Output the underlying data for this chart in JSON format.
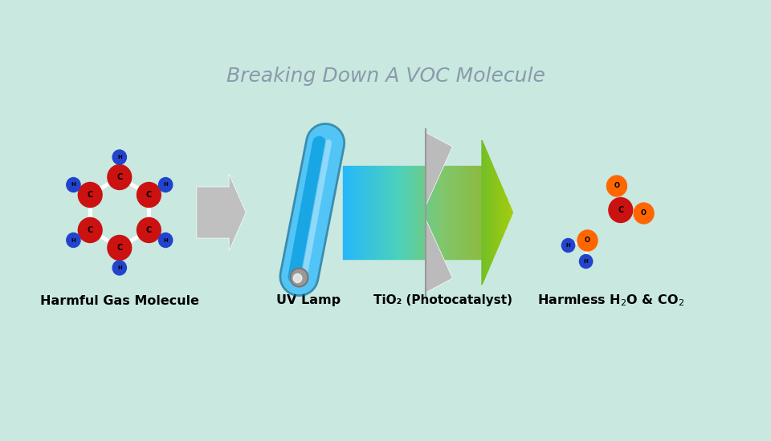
{
  "title": "Breaking Down A VOC Molecule",
  "title_color": "#8a9aaa",
  "title_fontsize": 18,
  "bg_color": "#c8e8e0",
  "label_harmful": "Harmful Gas Molecule",
  "label_uvlamp": "UV Lamp",
  "label_tio2": "TiO₂ (Photocatalyst)",
  "label_harmless": "Harmless H₂O & CO₂",
  "label_fontsize": 11.5,
  "red_atom_color": "#cc1111",
  "blue_atom_color": "#2244cc",
  "orange_atom_color": "#ff6600",
  "lamp_blue_light": "#55ccff",
  "lamp_blue_dark": "#0099dd",
  "lamp_gray": "#aaaaaa",
  "lamp_gray_light": "#cccccc",
  "arrow_gray": "#c0c0c0",
  "green_arrow": "#88cc33",
  "tio2_gray": "#bbbbbb",
  "xlim": [
    0,
    10
  ],
  "ylim": [
    0,
    5.5
  ]
}
